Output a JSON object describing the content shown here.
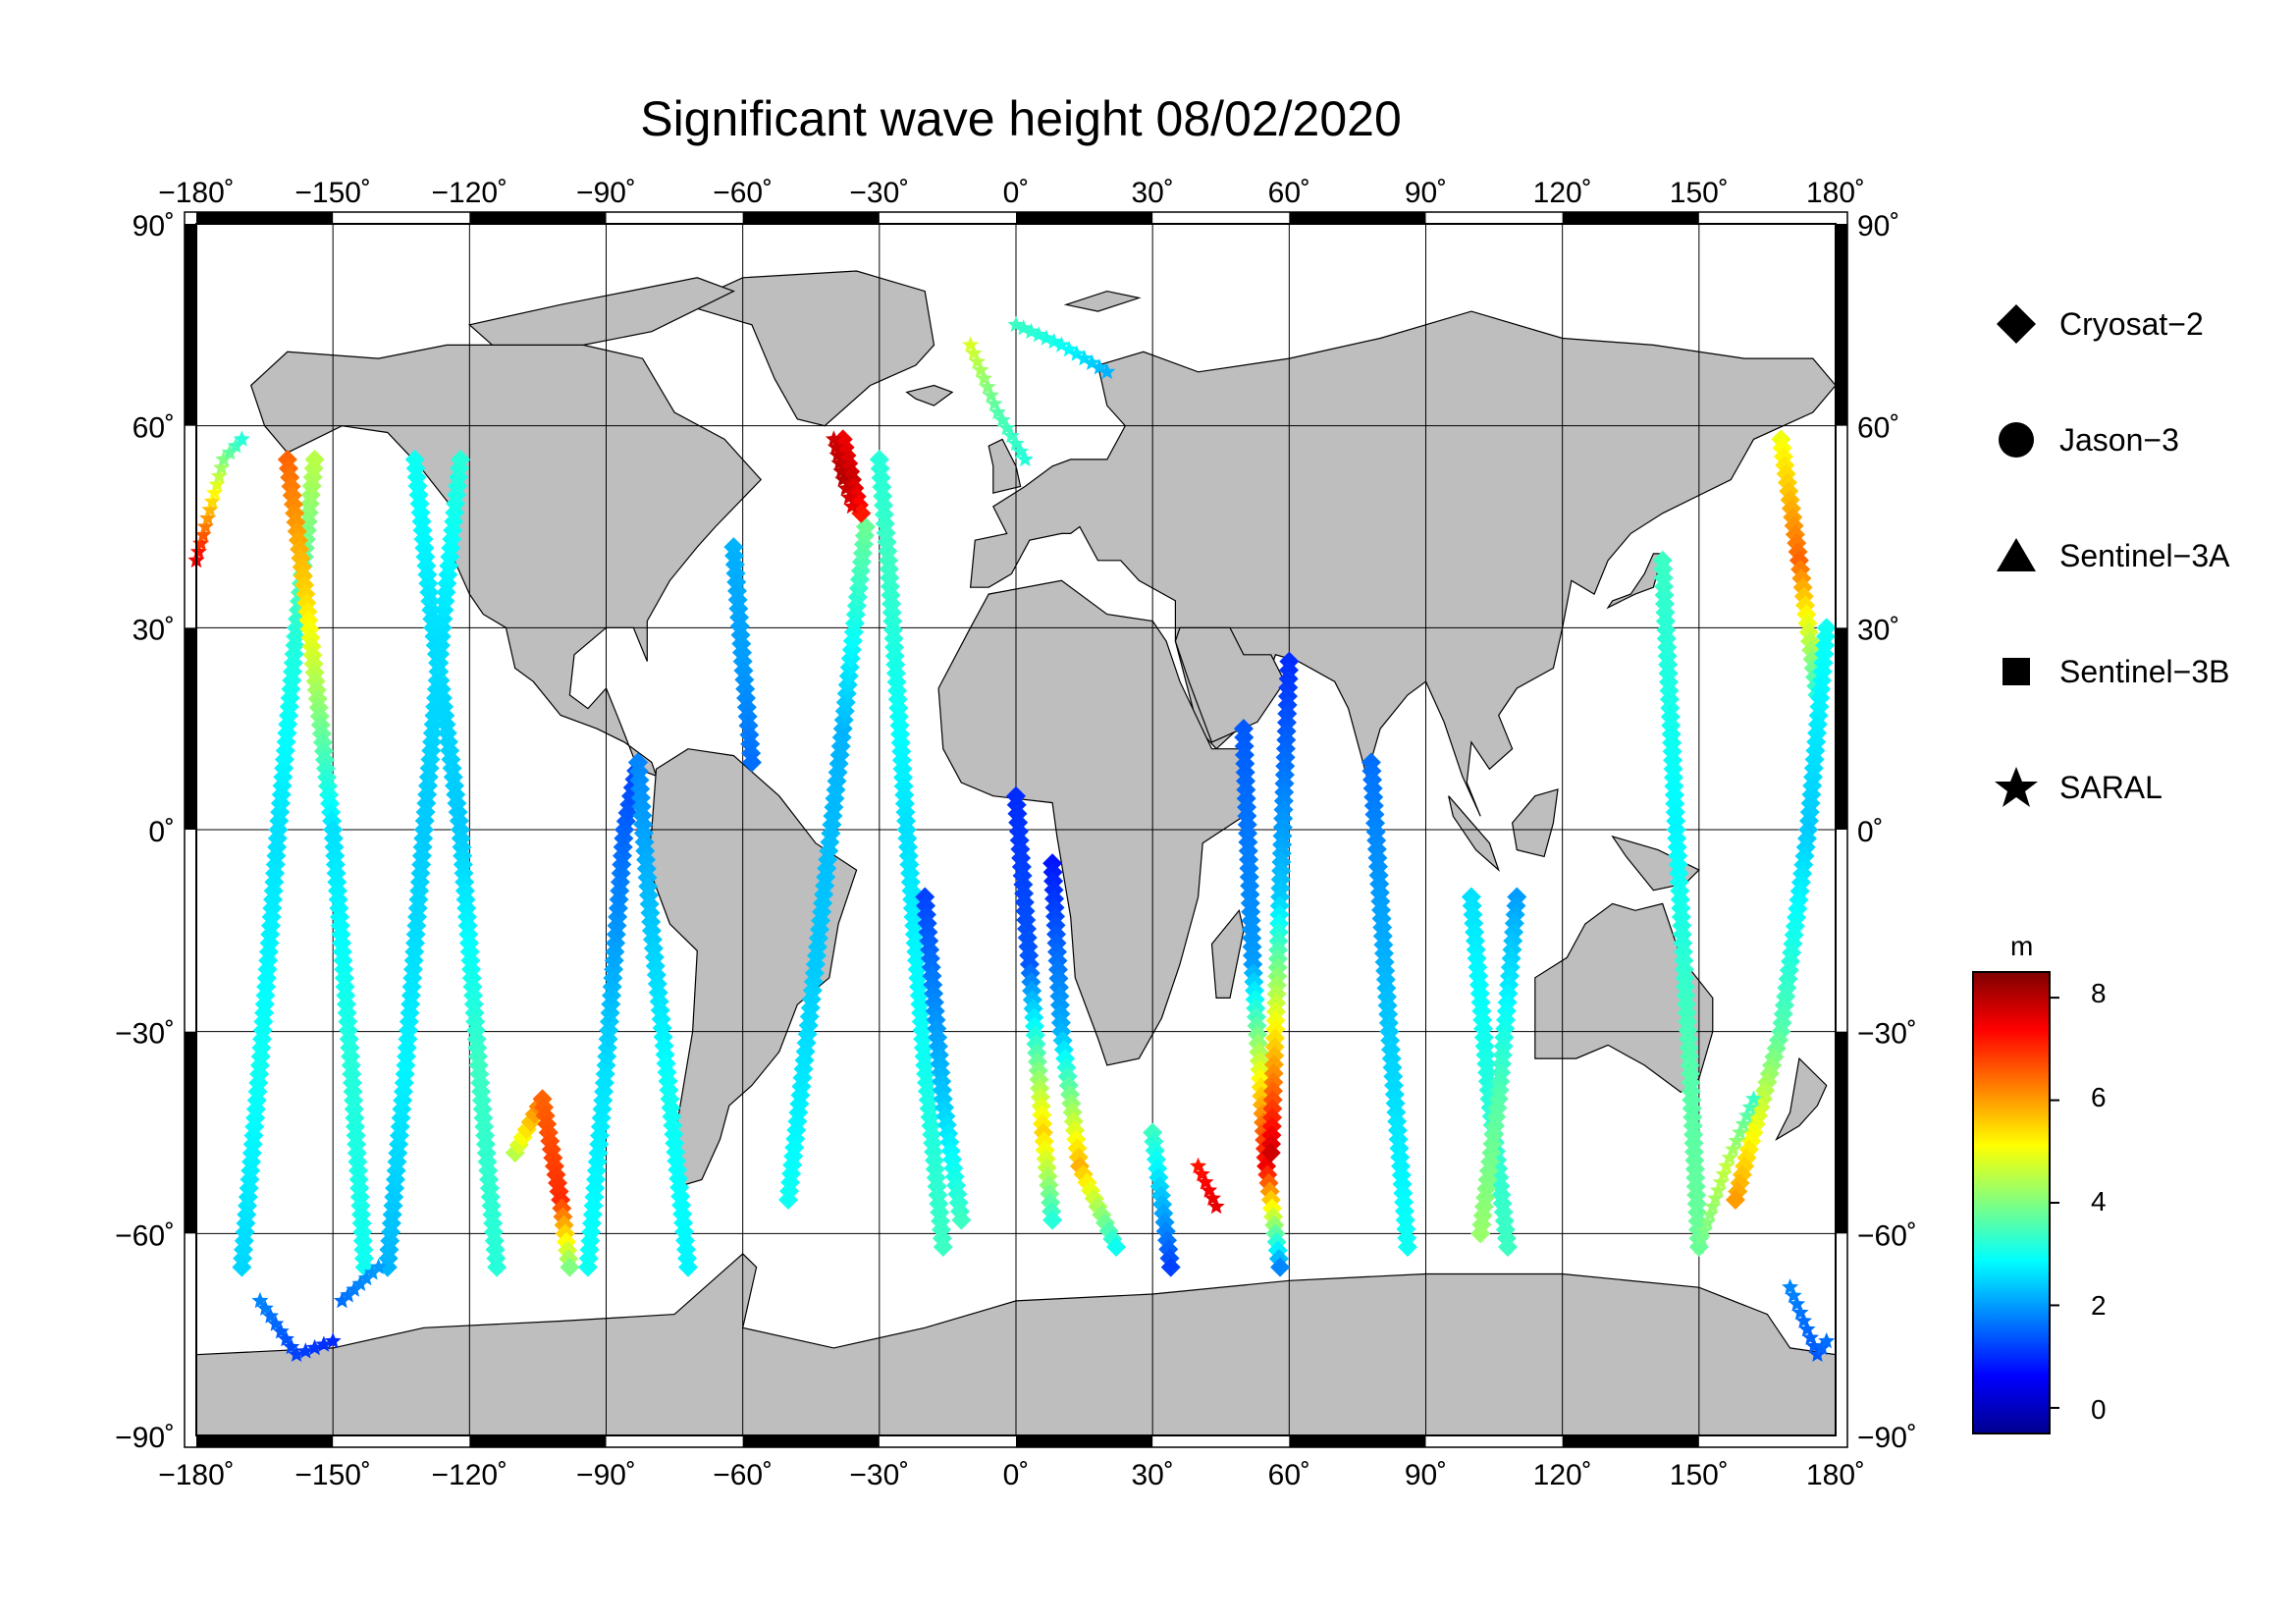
{
  "title": "Significant wave height 08/02/2020",
  "lon_ticks": [
    "−180˚",
    "−150˚",
    "−120˚",
    "−90˚",
    "−60˚",
    "−30˚",
    "0˚",
    "30˚",
    "60˚",
    "90˚",
    "120˚",
    "150˚",
    "180˚"
  ],
  "lat_ticks": [
    "90˚",
    "60˚",
    "30˚",
    "0˚",
    "−30˚",
    "−60˚",
    "−90˚"
  ],
  "legend": [
    {
      "label": "Cryosat−2",
      "icon": "diamond-icon"
    },
    {
      "label": "Jason−3",
      "icon": "circle-icon"
    },
    {
      "label": "Sentinel−3A",
      "icon": "triangle-icon"
    },
    {
      "label": "Sentinel−3B",
      "icon": "square-icon"
    },
    {
      "label": "SARAL",
      "icon": "star-icon"
    }
  ],
  "colorbar": {
    "unit": "m",
    "ticks": [
      "8",
      "6",
      "4",
      "2",
      "0"
    ],
    "range": [
      -0.5,
      8.5
    ],
    "colors": [
      "#00008f",
      "#0000ff",
      "#0080ff",
      "#00ffff",
      "#80ff80",
      "#ffff00",
      "#ff8000",
      "#ff0000",
      "#800000"
    ]
  },
  "colors": {
    "land": "#bebebe",
    "ocean": "#ffffff",
    "frame": "#000000"
  },
  "chart_data": {
    "type": "scatter",
    "projection": "equirectangular",
    "xlim": [
      -180,
      180
    ],
    "ylim": [
      -90,
      90
    ],
    "grid": true,
    "legend_position": "right",
    "tracks": [
      {
        "symbol": "diamond",
        "points": [
          [
            -170,
            -65
          ],
          [
            -166,
            -35
          ],
          [
            -162,
            0
          ],
          [
            -158,
            30
          ],
          [
            -154,
            55
          ]
        ],
        "swh": [
          2.5,
          3.0,
          2.6,
          3.2,
          4.5
        ]
      },
      {
        "symbol": "diamond",
        "points": [
          [
            -160,
            55
          ],
          [
            -156,
            35
          ],
          [
            -150,
            0
          ],
          [
            -146,
            -35
          ],
          [
            -143,
            -65
          ]
        ],
        "swh": [
          6.5,
          5.5,
          2.6,
          3.2,
          3.0
        ]
      },
      {
        "symbol": "diamond",
        "points": [
          [
            -138,
            -65
          ],
          [
            -134,
            -35
          ],
          [
            -130,
            0
          ],
          [
            -126,
            30
          ],
          [
            -122,
            55
          ]
        ],
        "swh": [
          2.2,
          2.8,
          2.4,
          2.6,
          3.2
        ]
      },
      {
        "symbol": "diamond",
        "points": [
          [
            -132,
            55
          ],
          [
            -128,
            30
          ],
          [
            -122,
            0
          ],
          [
            -118,
            -35
          ],
          [
            -114,
            -65
          ]
        ],
        "swh": [
          3.0,
          2.6,
          2.4,
          3.4,
          3.2
        ]
      },
      {
        "symbol": "diamond",
        "points": [
          [
            -110,
            -48
          ],
          [
            -104,
            -40
          ],
          [
            -100,
            -55
          ],
          [
            -98,
            -65
          ]
        ],
        "swh": [
          4.5,
          6.5,
          7.0,
          4.0
        ]
      },
      {
        "symbol": "diamond",
        "points": [
          [
            -94,
            -65
          ],
          [
            -90,
            -35
          ],
          [
            -86,
            0
          ],
          [
            -83,
            10
          ]
        ],
        "swh": [
          3.0,
          2.6,
          1.5,
          1.2
        ]
      },
      {
        "symbol": "diamond",
        "points": [
          [
            -83,
            10
          ],
          [
            -80,
            -15
          ],
          [
            -76,
            -40
          ],
          [
            -72,
            -65
          ]
        ],
        "swh": [
          1.8,
          2.4,
          3.0,
          2.8
        ]
      },
      {
        "symbol": "diamond",
        "points": [
          [
            -62,
            42
          ],
          [
            -60,
            25
          ],
          [
            -58,
            10
          ]
        ],
        "swh": [
          2.2,
          2.0,
          1.6
        ]
      },
      {
        "symbol": "diamond",
        "points": [
          [
            -50,
            -55
          ],
          [
            -44,
            -20
          ],
          [
            -38,
            15
          ],
          [
            -33,
            45
          ]
        ],
        "swh": [
          3.0,
          2.4,
          2.2,
          3.8
        ]
      },
      {
        "symbol": "diamond",
        "points": [
          [
            -38,
            58
          ],
          [
            -36,
            52
          ],
          [
            -34,
            47
          ]
        ],
        "swh": [
          7.5,
          7.8,
          7.2
        ]
      },
      {
        "symbol": "diamond",
        "points": [
          [
            -30,
            55
          ],
          [
            -28,
            40
          ],
          [
            -24,
            0
          ],
          [
            -20,
            -35
          ],
          [
            -16,
            -62
          ]
        ],
        "swh": [
          3.2,
          3.4,
          2.6,
          3.0,
          3.4
        ]
      },
      {
        "symbol": "diamond",
        "points": [
          [
            -20,
            -10
          ],
          [
            -16,
            -40
          ],
          [
            -12,
            -58
          ]
        ],
        "swh": [
          1.2,
          2.4,
          3.4
        ]
      },
      {
        "symbol": "diamond",
        "points": [
          [
            0,
            5
          ],
          [
            3,
            -20
          ],
          [
            6,
            -45
          ],
          [
            8,
            -58
          ]
        ],
        "swh": [
          1.0,
          1.4,
          5.5,
          3.2
        ]
      },
      {
        "symbol": "diamond",
        "points": [
          [
            8,
            -5
          ],
          [
            10,
            -30
          ],
          [
            14,
            -50
          ],
          [
            22,
            -62
          ]
        ],
        "swh": [
          0.8,
          2.2,
          5.8,
          3.0
        ]
      },
      {
        "symbol": "diamond",
        "points": [
          [
            30,
            -45
          ],
          [
            34,
            -65
          ]
        ],
        "swh": [
          3.4,
          1.2
        ]
      },
      {
        "symbol": "diamond",
        "points": [
          [
            50,
            15
          ],
          [
            52,
            -20
          ],
          [
            55,
            -50
          ],
          [
            58,
            -65
          ]
        ],
        "swh": [
          1.4,
          2.0,
          7.5,
          1.8
        ]
      },
      {
        "symbol": "diamond",
        "points": [
          [
            60,
            25
          ],
          [
            58,
            -10
          ],
          [
            56,
            -48
          ]
        ],
        "swh": [
          1.0,
          2.4,
          7.8
        ]
      },
      {
        "symbol": "diamond",
        "points": [
          [
            78,
            10
          ],
          [
            82,
            -30
          ],
          [
            86,
            -62
          ]
        ],
        "swh": [
          1.6,
          2.4,
          3.0
        ]
      },
      {
        "symbol": "diamond",
        "points": [
          [
            100,
            -10
          ],
          [
            104,
            -40
          ],
          [
            108,
            -62
          ]
        ],
        "swh": [
          2.6,
          3.2,
          3.4
        ]
      },
      {
        "symbol": "diamond",
        "points": [
          [
            110,
            -10
          ],
          [
            106,
            -40
          ],
          [
            102,
            -60
          ]
        ],
        "swh": [
          2.0,
          3.6,
          4.2
        ]
      },
      {
        "symbol": "diamond",
        "points": [
          [
            142,
            40
          ],
          [
            145,
            0
          ],
          [
            148,
            -35
          ],
          [
            150,
            -62
          ]
        ],
        "swh": [
          3.4,
          2.8,
          3.6,
          3.8
        ]
      },
      {
        "symbol": "diamond",
        "points": [
          [
            168,
            58
          ],
          [
            172,
            40
          ],
          [
            176,
            20
          ]
        ],
        "swh": [
          5.0,
          6.5,
          3.2
        ]
      },
      {
        "symbol": "diamond",
        "points": [
          [
            178,
            30
          ],
          [
            174,
            0
          ],
          [
            168,
            -30
          ],
          [
            158,
            -55
          ]
        ],
        "swh": [
          3.0,
          2.4,
          3.6,
          6.0
        ]
      },
      {
        "symbol": "star",
        "points": [
          [
            -180,
            40
          ],
          [
            -174,
            55
          ],
          [
            -170,
            58
          ]
        ],
        "swh": [
          7.5,
          4.0,
          3.2
        ]
      },
      {
        "symbol": "star",
        "points": [
          [
            -166,
            -70
          ],
          [
            -158,
            -78
          ],
          [
            -150,
            -76
          ]
        ],
        "swh": [
          1.8,
          1.2,
          1.0
        ]
      },
      {
        "symbol": "star",
        "points": [
          [
            -148,
            -70
          ],
          [
            -140,
            -65
          ]
        ],
        "swh": [
          1.6,
          2.0
        ]
      },
      {
        "symbol": "star",
        "points": [
          [
            0,
            75
          ],
          [
            10,
            72
          ],
          [
            20,
            68
          ]
        ],
        "swh": [
          3.4,
          3.0,
          2.2
        ]
      },
      {
        "symbol": "star",
        "points": [
          [
            -10,
            72
          ],
          [
            -4,
            62
          ],
          [
            2,
            55
          ]
        ],
        "swh": [
          4.8,
          3.6,
          3.2
        ]
      },
      {
        "symbol": "star",
        "points": [
          [
            -40,
            58
          ],
          [
            -38,
            52
          ],
          [
            -36,
            48
          ]
        ],
        "swh": [
          7.8,
          8.0,
          7.6
        ]
      },
      {
        "symbol": "star",
        "points": [
          [
            40,
            -50
          ],
          [
            44,
            -56
          ]
        ],
        "swh": [
          7.2,
          7.6
        ]
      },
      {
        "symbol": "star",
        "points": [
          [
            170,
            -68
          ],
          [
            176,
            -78
          ],
          [
            178,
            -76
          ]
        ],
        "swh": [
          1.8,
          1.4,
          1.6
        ]
      },
      {
        "symbol": "star",
        "points": [
          [
            150,
            -62
          ],
          [
            156,
            -50
          ],
          [
            162,
            -40
          ]
        ],
        "swh": [
          3.8,
          4.6,
          3.4
        ]
      }
    ]
  }
}
